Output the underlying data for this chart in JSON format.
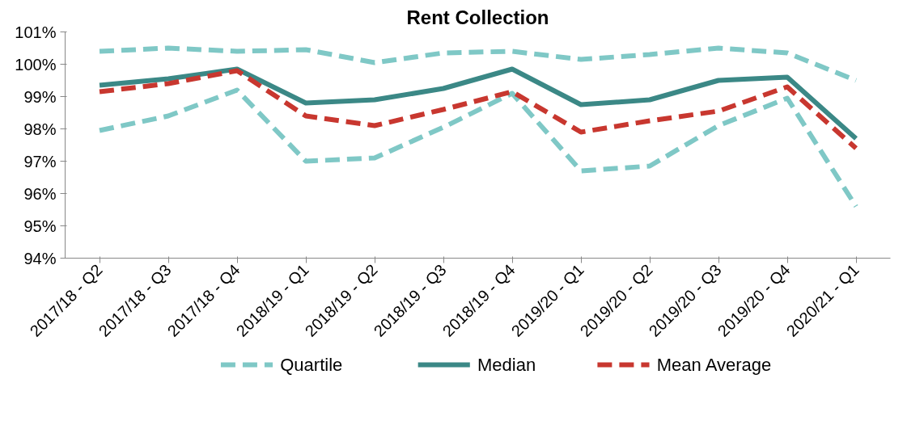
{
  "chart_data": {
    "type": "line",
    "title": "Rent Collection",
    "categories": [
      "2017/18 - Q2",
      "2017/18 - Q3",
      "2017/18 - Q4",
      "2018/19 - Q1",
      "2018/19 - Q2",
      "2018/19 - Q3",
      "2018/19 - Q4",
      "2019/20 - Q1",
      "2019/20 - Q2",
      "2019/20 - Q3",
      "2019/20 - Q4",
      "2020/21 - Q1"
    ],
    "series": [
      {
        "name": "Quartile",
        "color": "#7fc8c6",
        "line_style": "dashed",
        "values": [
          100.4,
          100.5,
          100.4,
          100.45,
          100.05,
          100.35,
          100.4,
          100.15,
          100.3,
          100.5,
          100.35,
          99.5
        ]
      },
      {
        "color": "#7fc8c6",
        "line_style": "dashed",
        "values": [
          97.95,
          98.4,
          99.2,
          97.0,
          97.1,
          98.05,
          99.1,
          96.7,
          96.85,
          98.1,
          98.95,
          95.6
        ]
      },
      {
        "name": "Median",
        "color": "#3b8886",
        "line_style": "solid",
        "values": [
          99.35,
          99.55,
          99.85,
          98.8,
          98.9,
          99.25,
          99.85,
          98.75,
          98.9,
          99.5,
          99.6,
          97.7
        ]
      },
      {
        "name": "Mean Average",
        "color": "#c8372f",
        "line_style": "dashed",
        "values": [
          99.15,
          99.4,
          99.8,
          98.4,
          98.1,
          98.6,
          99.15,
          97.9,
          98.25,
          98.55,
          99.3,
          97.4
        ]
      }
    ],
    "ylim": [
      94,
      101
    ],
    "yticks": [
      {
        "value": 94,
        "label": "94%"
      },
      {
        "value": 95,
        "label": "95%"
      },
      {
        "value": 96,
        "label": "96%"
      },
      {
        "value": 97,
        "label": "97%"
      },
      {
        "value": 98,
        "label": "98%"
      },
      {
        "value": 99,
        "label": "99%"
      },
      {
        "value": 100,
        "label": "100%"
      },
      {
        "value": 101,
        "label": "101%"
      }
    ],
    "grid": false,
    "legend": "bottom",
    "marker": "none"
  }
}
